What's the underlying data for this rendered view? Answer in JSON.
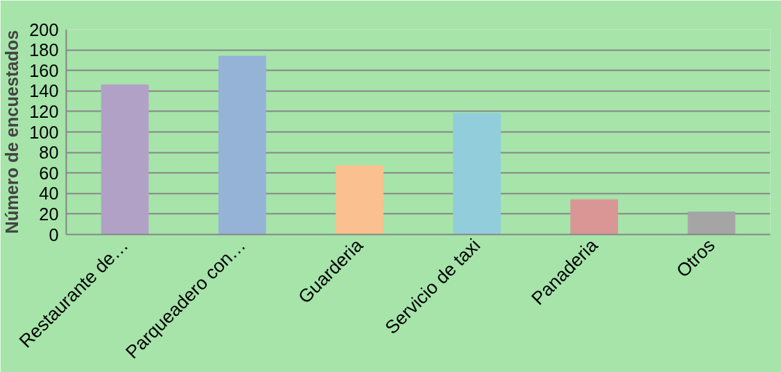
{
  "chart_data": {
    "type": "bar",
    "ylabel": "Número de encuestados",
    "categories": [
      "Restaurante de…",
      "Parqueadero con…",
      "Guarderia",
      "Servicio de taxi",
      "Panaderia",
      "Otros"
    ],
    "values": [
      146,
      174,
      67,
      118,
      34,
      22
    ],
    "colors": [
      "#b2a1c7",
      "#95b3d7",
      "#fac090",
      "#92cddc",
      "#d99694",
      "#a5a5a5"
    ],
    "ylim": [
      0,
      200
    ],
    "yticks": [
      0,
      20,
      40,
      60,
      80,
      100,
      120,
      140,
      160,
      180,
      200
    ],
    "grid": "y"
  }
}
